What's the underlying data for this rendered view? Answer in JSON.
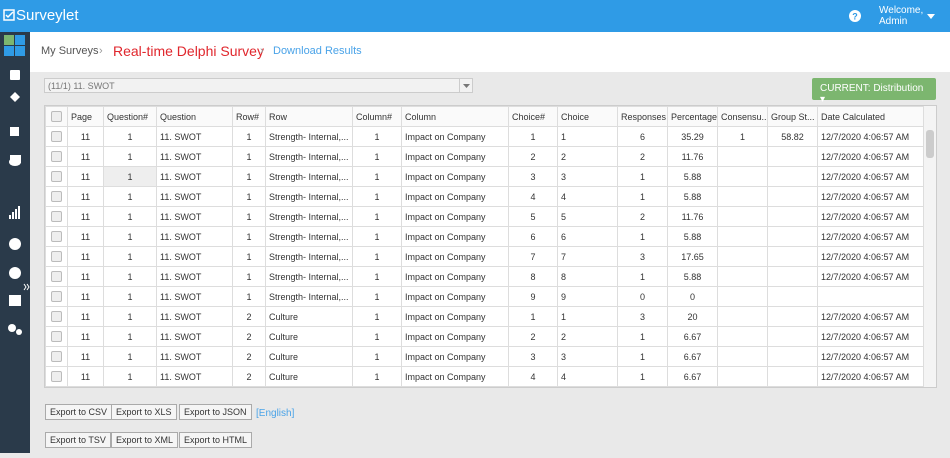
{
  "header": {
    "logo": "Surveylet",
    "welcome": "Welcome,",
    "user": "Admin"
  },
  "breadcrumb": {
    "home": "My Surveys",
    "survey": "Real-time Delphi Survey",
    "current": "Download Results"
  },
  "filter": {
    "selected": "(11/1) 11. SWOT",
    "mode": "CURRENT: Distribution"
  },
  "table": {
    "columns": [
      "Page",
      "Question#",
      "Question",
      "Row#",
      "Row",
      "Column#",
      "Column",
      "Choice#",
      "Choice",
      "Responses",
      "Percentage",
      "Consensu...",
      "Group St...",
      "Date Calculated"
    ],
    "rows": [
      [
        "11",
        "1",
        "11. SWOT",
        "1",
        "Strength- Internal,...",
        "1",
        "Impact on Company",
        "1",
        "1",
        "6",
        "35.29",
        "1",
        "58.82",
        "12/7/2020 4:06:57 AM"
      ],
      [
        "11",
        "1",
        "11. SWOT",
        "1",
        "Strength- Internal,...",
        "1",
        "Impact on Company",
        "2",
        "2",
        "2",
        "11.76",
        null,
        null,
        "12/7/2020 4:06:57 AM"
      ],
      [
        "11",
        "1",
        "11. SWOT",
        "1",
        "Strength- Internal,...",
        "1",
        "Impact on Company",
        "3",
        "3",
        "1",
        "5.88",
        null,
        null,
        "12/7/2020 4:06:57 AM"
      ],
      [
        "11",
        "1",
        "11. SWOT",
        "1",
        "Strength- Internal,...",
        "1",
        "Impact on Company",
        "4",
        "4",
        "1",
        "5.88",
        null,
        null,
        "12/7/2020 4:06:57 AM"
      ],
      [
        "11",
        "1",
        "11. SWOT",
        "1",
        "Strength- Internal,...",
        "1",
        "Impact on Company",
        "5",
        "5",
        "2",
        "11.76",
        null,
        null,
        "12/7/2020 4:06:57 AM"
      ],
      [
        "11",
        "1",
        "11. SWOT",
        "1",
        "Strength- Internal,...",
        "1",
        "Impact on Company",
        "6",
        "6",
        "1",
        "5.88",
        null,
        null,
        "12/7/2020 4:06:57 AM"
      ],
      [
        "11",
        "1",
        "11. SWOT",
        "1",
        "Strength- Internal,...",
        "1",
        "Impact on Company",
        "7",
        "7",
        "3",
        "17.65",
        null,
        null,
        "12/7/2020 4:06:57 AM"
      ],
      [
        "11",
        "1",
        "11. SWOT",
        "1",
        "Strength- Internal,...",
        "1",
        "Impact on Company",
        "8",
        "8",
        "1",
        "5.88",
        null,
        null,
        "12/7/2020 4:06:57 AM"
      ],
      [
        "11",
        "1",
        "11. SWOT",
        "1",
        "Strength- Internal,...",
        "1",
        "Impact on Company",
        "9",
        "9",
        "0",
        "0",
        null,
        null,
        null
      ],
      [
        "11",
        "1",
        "11. SWOT",
        "2",
        "Culture",
        "1",
        "Impact on Company",
        "1",
        "1",
        "3",
        "20",
        null,
        null,
        "12/7/2020 4:06:57 AM"
      ],
      [
        "11",
        "1",
        "11. SWOT",
        "2",
        "Culture",
        "1",
        "Impact on Company",
        "2",
        "2",
        "1",
        "6.67",
        null,
        null,
        "12/7/2020 4:06:57 AM"
      ],
      [
        "11",
        "1",
        "11. SWOT",
        "2",
        "Culture",
        "1",
        "Impact on Company",
        "3",
        "3",
        "1",
        "6.67",
        null,
        null,
        "12/7/2020 4:06:57 AM"
      ],
      [
        "11",
        "1",
        "11. SWOT",
        "2",
        "Culture",
        "1",
        "Impact on Company",
        "4",
        "4",
        "1",
        "6.67",
        null,
        null,
        "12/7/2020 4:06:57 AM"
      ]
    ]
  },
  "exports": {
    "row1": [
      "Export to CSV",
      "Export to XLS",
      "Export to JSON"
    ],
    "language": "[English]",
    "row2": [
      "Export to TSV",
      "Export to XML",
      "Export to HTML"
    ]
  }
}
